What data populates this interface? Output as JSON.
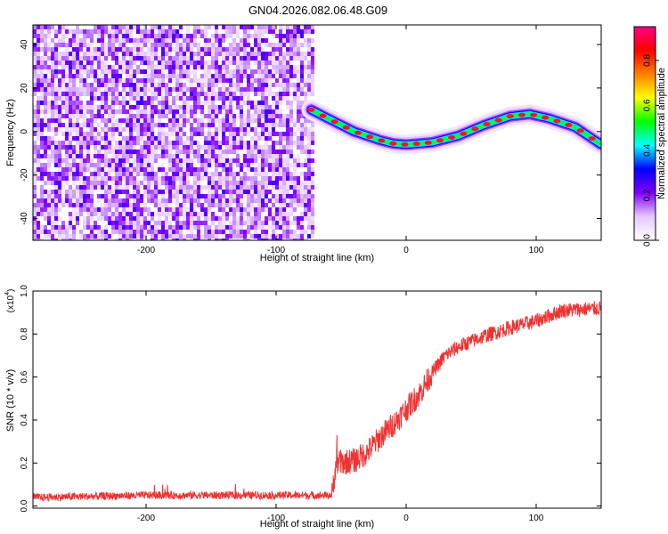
{
  "figure": {
    "title": "GN04.2026.082.06.48.G09"
  },
  "chart_data": [
    {
      "type": "heatmap",
      "xlabel": "Height of straight line (km)",
      "ylabel": "Frequency (Hz)",
      "xlim": [
        -287,
        150
      ],
      "ylim": [
        -50,
        49
      ],
      "xticks": [
        -200,
        -100,
        0,
        100
      ],
      "yticks": [
        -40,
        -20,
        0,
        20,
        40
      ],
      "noise_region_x": [
        -287,
        -73
      ],
      "signal_start_x": -73,
      "frequency_track": [
        {
          "x": -73,
          "y": 10
        },
        {
          "x": -60,
          "y": 6
        },
        {
          "x": -40,
          "y": 0
        },
        {
          "x": -20,
          "y": -4
        },
        {
          "x": -10,
          "y": -5.5
        },
        {
          "x": 0,
          "y": -6
        },
        {
          "x": 20,
          "y": -5
        },
        {
          "x": 40,
          "y": -2
        },
        {
          "x": 60,
          "y": 3
        },
        {
          "x": 80,
          "y": 7
        },
        {
          "x": 95,
          "y": 8
        },
        {
          "x": 110,
          "y": 6
        },
        {
          "x": 130,
          "y": 2
        },
        {
          "x": 150,
          "y": -6
        }
      ],
      "colorbar": {
        "label": "Normalized spectral amplitude",
        "range": [
          0.0,
          0.95
        ],
        "ticks": [
          0.0,
          0.2,
          0.4,
          0.6,
          0.8
        ],
        "colors": [
          "#ffffff",
          "#e6c8ff",
          "#8000ff",
          "#0000ff",
          "#00ffff",
          "#00ff00",
          "#ffff00",
          "#ff8000",
          "#ff0000",
          "#ff0080"
        ]
      },
      "grid": false
    },
    {
      "type": "line",
      "xlabel": "Height of straight line (km)",
      "ylabel": "SNR (10 * v/v)",
      "yscale_label": "(x10",
      "yscale_exp": "4",
      "yscale_close": ")",
      "xlim": [
        -287,
        150
      ],
      "ylim": [
        -0.01,
        1.0
      ],
      "xticks": [
        -200,
        -100,
        0,
        100
      ],
      "yticks": [
        0.0,
        0.2,
        0.4,
        0.6,
        0.8,
        1.0
      ],
      "ytick_labels": [
        "0.0",
        "0.2",
        "0.4",
        "0.6",
        "0.8",
        "1.0"
      ],
      "series": [
        {
          "color": "#ee3333",
          "points": [
            {
              "x": -287,
              "y": 0.04
            },
            {
              "x": -200,
              "y": 0.05
            },
            {
              "x": -100,
              "y": 0.05
            },
            {
              "x": -57,
              "y": 0.05
            },
            {
              "x": -54,
              "y": 0.2
            },
            {
              "x": -40,
              "y": 0.21
            },
            {
              "x": -30,
              "y": 0.25
            },
            {
              "x": -20,
              "y": 0.32
            },
            {
              "x": -10,
              "y": 0.38
            },
            {
              "x": 0,
              "y": 0.45
            },
            {
              "x": 10,
              "y": 0.52
            },
            {
              "x": 20,
              "y": 0.62
            },
            {
              "x": 30,
              "y": 0.7
            },
            {
              "x": 40,
              "y": 0.74
            },
            {
              "x": 60,
              "y": 0.79
            },
            {
              "x": 80,
              "y": 0.83
            },
            {
              "x": 100,
              "y": 0.86
            },
            {
              "x": 120,
              "y": 0.91
            },
            {
              "x": 150,
              "y": 0.92
            }
          ]
        }
      ],
      "grid": false
    }
  ]
}
